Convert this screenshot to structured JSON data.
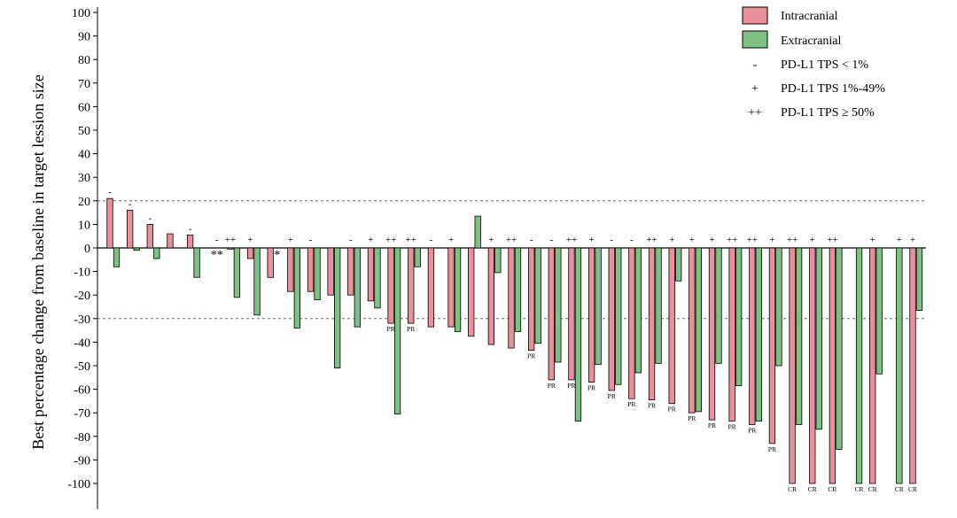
{
  "chart_data": {
    "type": "bar",
    "ylabel": "Best percentage change from baseline in target lession size",
    "ylim": [
      -100,
      100
    ],
    "yticks": [
      100,
      90,
      80,
      70,
      60,
      50,
      40,
      30,
      20,
      10,
      0,
      -10,
      -20,
      -30,
      -40,
      -50,
      -60,
      -70,
      -80,
      -90,
      -100
    ],
    "ytick_labels": [
      "100",
      "90",
      "80",
      "70",
      "60",
      "50",
      "40",
      "30",
      "20",
      "10",
      "0",
      "-10",
      "-20",
      "-30",
      "-40",
      "-50",
      "-60",
      "-70",
      "-80",
      "-90",
      "-100"
    ],
    "reference_lines": [
      20,
      -30
    ],
    "colors": {
      "intracranial": "#e8909c",
      "extracranial": "#7fc184"
    },
    "legend": {
      "position": "top-right",
      "series": [
        {
          "key": "intracranial",
          "label": "Intracranial"
        },
        {
          "key": "extracranial",
          "label": "Extracranial"
        }
      ],
      "markers": [
        {
          "symbol": "-",
          "label": "PD-L1 TPS < 1%"
        },
        {
          "symbol": "+",
          "label": "PD-L1 TPS 1%-49%"
        },
        {
          "symbol": "++",
          "label": "PD-L1 TPS ≥ 50%"
        }
      ]
    },
    "patients": [
      {
        "intra": 21,
        "extra": -8,
        "pdl1": "-",
        "intra_resp": "",
        "extra_resp": "",
        "note": ""
      },
      {
        "intra": 16,
        "extra": -1,
        "pdl1": "-",
        "intra_resp": "",
        "extra_resp": "",
        "note": ""
      },
      {
        "intra": 10,
        "extra": -4.5,
        "pdl1": "-",
        "intra_resp": "",
        "extra_resp": "",
        "note": ""
      },
      {
        "intra": 6,
        "extra": null,
        "pdl1": "",
        "intra_resp": "",
        "extra_resp": "",
        "note": ""
      },
      {
        "intra": 5.5,
        "extra": -12.5,
        "pdl1": "-",
        "intra_resp": "",
        "extra_resp": "",
        "note": ""
      },
      {
        "intra": null,
        "extra": null,
        "pdl1": "-",
        "intra_resp": "",
        "extra_resp": "",
        "note": "**"
      },
      {
        "intra": -0.5,
        "extra": -21,
        "pdl1": "++",
        "intra_resp": "",
        "extra_resp": "",
        "note": ""
      },
      {
        "intra": -4.5,
        "extra": -28.5,
        "pdl1": "+",
        "intra_resp": "",
        "extra_resp": "",
        "note": ""
      },
      {
        "intra": -12.5,
        "extra": null,
        "pdl1": "",
        "intra_resp": "",
        "extra_resp": "",
        "note": "*"
      },
      {
        "intra": -18.5,
        "extra": -34,
        "pdl1": "+",
        "intra_resp": "",
        "extra_resp": "",
        "note": ""
      },
      {
        "intra": -18.5,
        "extra": -22,
        "pdl1": "-",
        "intra_resp": "",
        "extra_resp": "",
        "note": ""
      },
      {
        "intra": -20,
        "extra": -51,
        "pdl1": "",
        "intra_resp": "",
        "extra_resp": "",
        "note": ""
      },
      {
        "intra": -20,
        "extra": -33.5,
        "pdl1": "-",
        "intra_resp": "",
        "extra_resp": "",
        "note": ""
      },
      {
        "intra": -22.5,
        "extra": -25.5,
        "pdl1": "+",
        "intra_resp": "",
        "extra_resp": "",
        "note": ""
      },
      {
        "intra": -32,
        "extra": -70.5,
        "pdl1": "++",
        "intra_resp": "PR",
        "extra_resp": "",
        "note": ""
      },
      {
        "intra": -32,
        "extra": -8,
        "pdl1": "++",
        "intra_resp": "PR",
        "extra_resp": "",
        "note": ""
      },
      {
        "intra": -33.5,
        "extra": null,
        "pdl1": "-",
        "intra_resp": "",
        "extra_resp": "",
        "note": ""
      },
      {
        "intra": -33.5,
        "extra": -35.5,
        "pdl1": "+",
        "intra_resp": "",
        "extra_resp": "",
        "note": ""
      },
      {
        "intra": -37.5,
        "extra": 13.5,
        "pdl1": "",
        "intra_resp": "",
        "extra_resp": "",
        "note": ""
      },
      {
        "intra": -41,
        "extra": -10.5,
        "pdl1": "+",
        "intra_resp": "",
        "extra_resp": "",
        "note": ""
      },
      {
        "intra": -42.5,
        "extra": -35.5,
        "pdl1": "++",
        "intra_resp": "",
        "extra_resp": "",
        "note": ""
      },
      {
        "intra": -43.5,
        "extra": -40.5,
        "pdl1": "-",
        "intra_resp": "PR",
        "extra_resp": "",
        "note": ""
      },
      {
        "intra": -56,
        "extra": -48.5,
        "pdl1": "-",
        "intra_resp": "PR",
        "extra_resp": "",
        "note": ""
      },
      {
        "intra": -56,
        "extra": -73.5,
        "pdl1": "++",
        "intra_resp": "PR",
        "extra_resp": "",
        "note": ""
      },
      {
        "intra": -57,
        "extra": -49.5,
        "pdl1": "+",
        "intra_resp": "PR",
        "extra_resp": "",
        "note": ""
      },
      {
        "intra": -60.5,
        "extra": -58,
        "pdl1": "-",
        "intra_resp": "PR",
        "extra_resp": "",
        "note": ""
      },
      {
        "intra": -64,
        "extra": -53,
        "pdl1": "-",
        "intra_resp": "PR",
        "extra_resp": "",
        "note": ""
      },
      {
        "intra": -64.5,
        "extra": -49,
        "pdl1": "++",
        "intra_resp": "PR",
        "extra_resp": "",
        "note": ""
      },
      {
        "intra": -66,
        "extra": -14,
        "pdl1": "+",
        "intra_resp": "PR",
        "extra_resp": "",
        "note": ""
      },
      {
        "intra": -70,
        "extra": -69.5,
        "pdl1": "+",
        "intra_resp": "PR",
        "extra_resp": "",
        "note": ""
      },
      {
        "intra": -73,
        "extra": -49,
        "pdl1": "+",
        "intra_resp": "PR",
        "extra_resp": "",
        "note": ""
      },
      {
        "intra": -73.5,
        "extra": -58.5,
        "pdl1": "++",
        "intra_resp": "PR",
        "extra_resp": "",
        "note": ""
      },
      {
        "intra": -75,
        "extra": -73.5,
        "pdl1": "++",
        "intra_resp": "PR",
        "extra_resp": "",
        "note": ""
      },
      {
        "intra": -83,
        "extra": -50,
        "pdl1": "+",
        "intra_resp": "PR",
        "extra_resp": "",
        "note": ""
      },
      {
        "intra": -100,
        "extra": -75,
        "pdl1": "++",
        "intra_resp": "CR",
        "extra_resp": "",
        "note": ""
      },
      {
        "intra": -100,
        "extra": -77,
        "pdl1": "+",
        "intra_resp": "CR",
        "extra_resp": "",
        "note": ""
      },
      {
        "intra": -100,
        "extra": -85.5,
        "pdl1": "++",
        "intra_resp": "CR",
        "extra_resp": "",
        "note": ""
      },
      {
        "intra": null,
        "extra": -100,
        "pdl1": "",
        "intra_resp": "",
        "extra_resp": "CR",
        "note": ""
      },
      {
        "intra": -100,
        "extra": -53.5,
        "pdl1": "+",
        "intra_resp": "CR",
        "extra_resp": "",
        "note": ""
      },
      {
        "intra": null,
        "extra": -100,
        "pdl1": "+",
        "intra_resp": "",
        "extra_resp": "CR",
        "note": ""
      },
      {
        "intra": -100,
        "extra": -26.5,
        "pdl1": "+",
        "intra_resp": "CR",
        "extra_resp": "",
        "note": ""
      }
    ]
  }
}
